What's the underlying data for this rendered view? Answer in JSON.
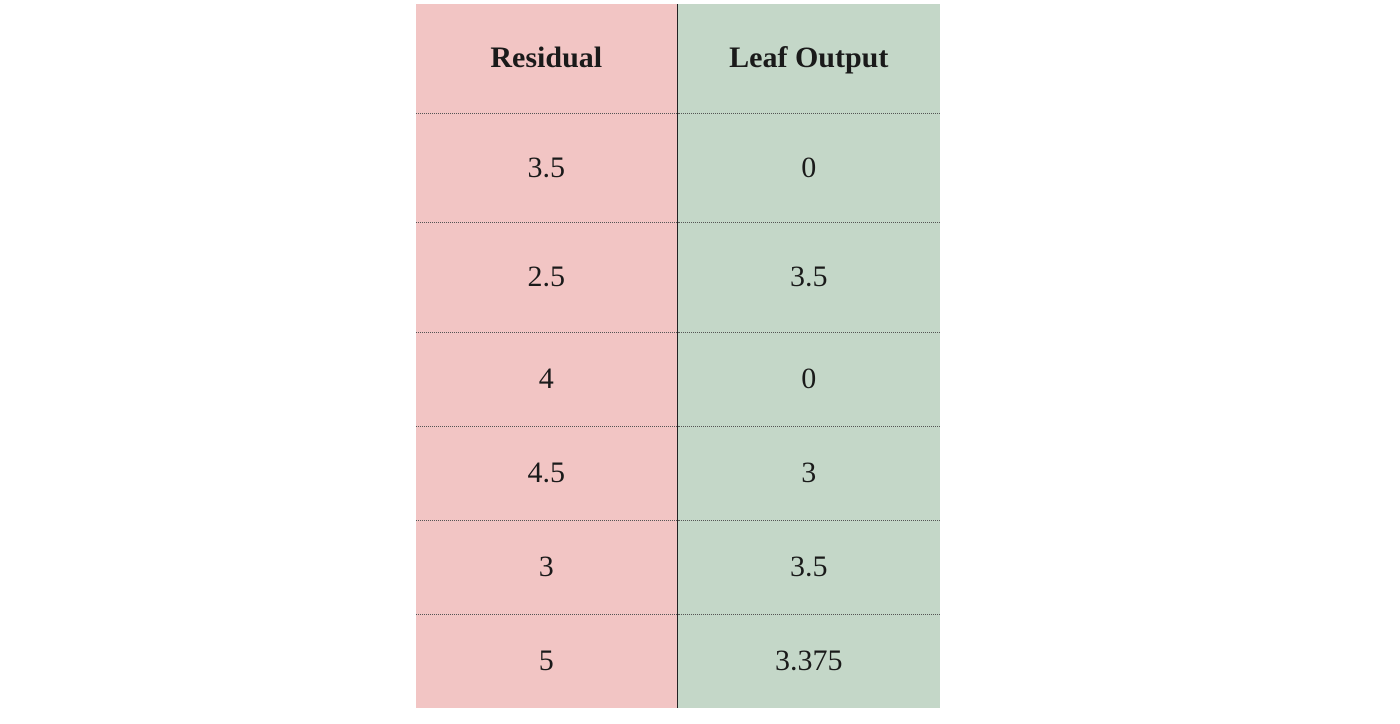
{
  "table": {
    "headers": [
      "Residual",
      "Leaf Output"
    ],
    "rows": [
      [
        "3.5",
        "0"
      ],
      [
        "2.5",
        "3.5"
      ],
      [
        "4",
        "0"
      ],
      [
        "4.5",
        "3"
      ],
      [
        "3",
        "3.5"
      ],
      [
        "5",
        "3.375"
      ]
    ]
  },
  "colors": {
    "residual_column": "#f2c5c4",
    "leaf_output_column": "#c4d7c8"
  }
}
